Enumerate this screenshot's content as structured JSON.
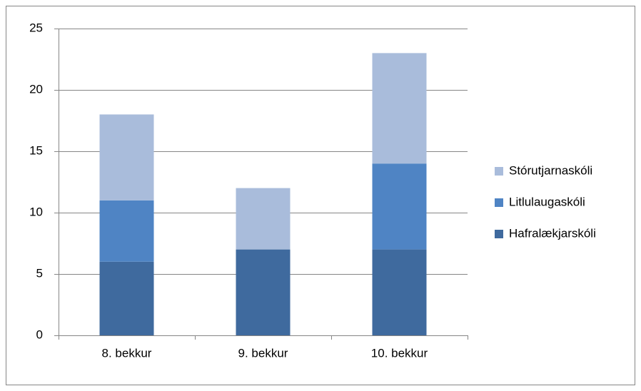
{
  "chart_data": {
    "type": "stacked_bar",
    "categories": [
      "8. bekkur",
      "9. bekkur",
      "10. bekkur"
    ],
    "series": [
      {
        "name": "Hafralækjarskóli",
        "color": "#3f6a9e",
        "values": [
          6,
          7,
          7
        ]
      },
      {
        "name": "Litlulaugaskóli",
        "color": "#4f84c4",
        "values": [
          5,
          0,
          7
        ]
      },
      {
        "name": "Stórutjarnaskóli",
        "color": "#a9bcdb",
        "values": [
          7,
          5,
          9
        ]
      }
    ],
    "ylim": [
      0,
      25
    ],
    "yticks": [
      0,
      5,
      10,
      15,
      20,
      25
    ],
    "grid": true,
    "legend": "right"
  }
}
